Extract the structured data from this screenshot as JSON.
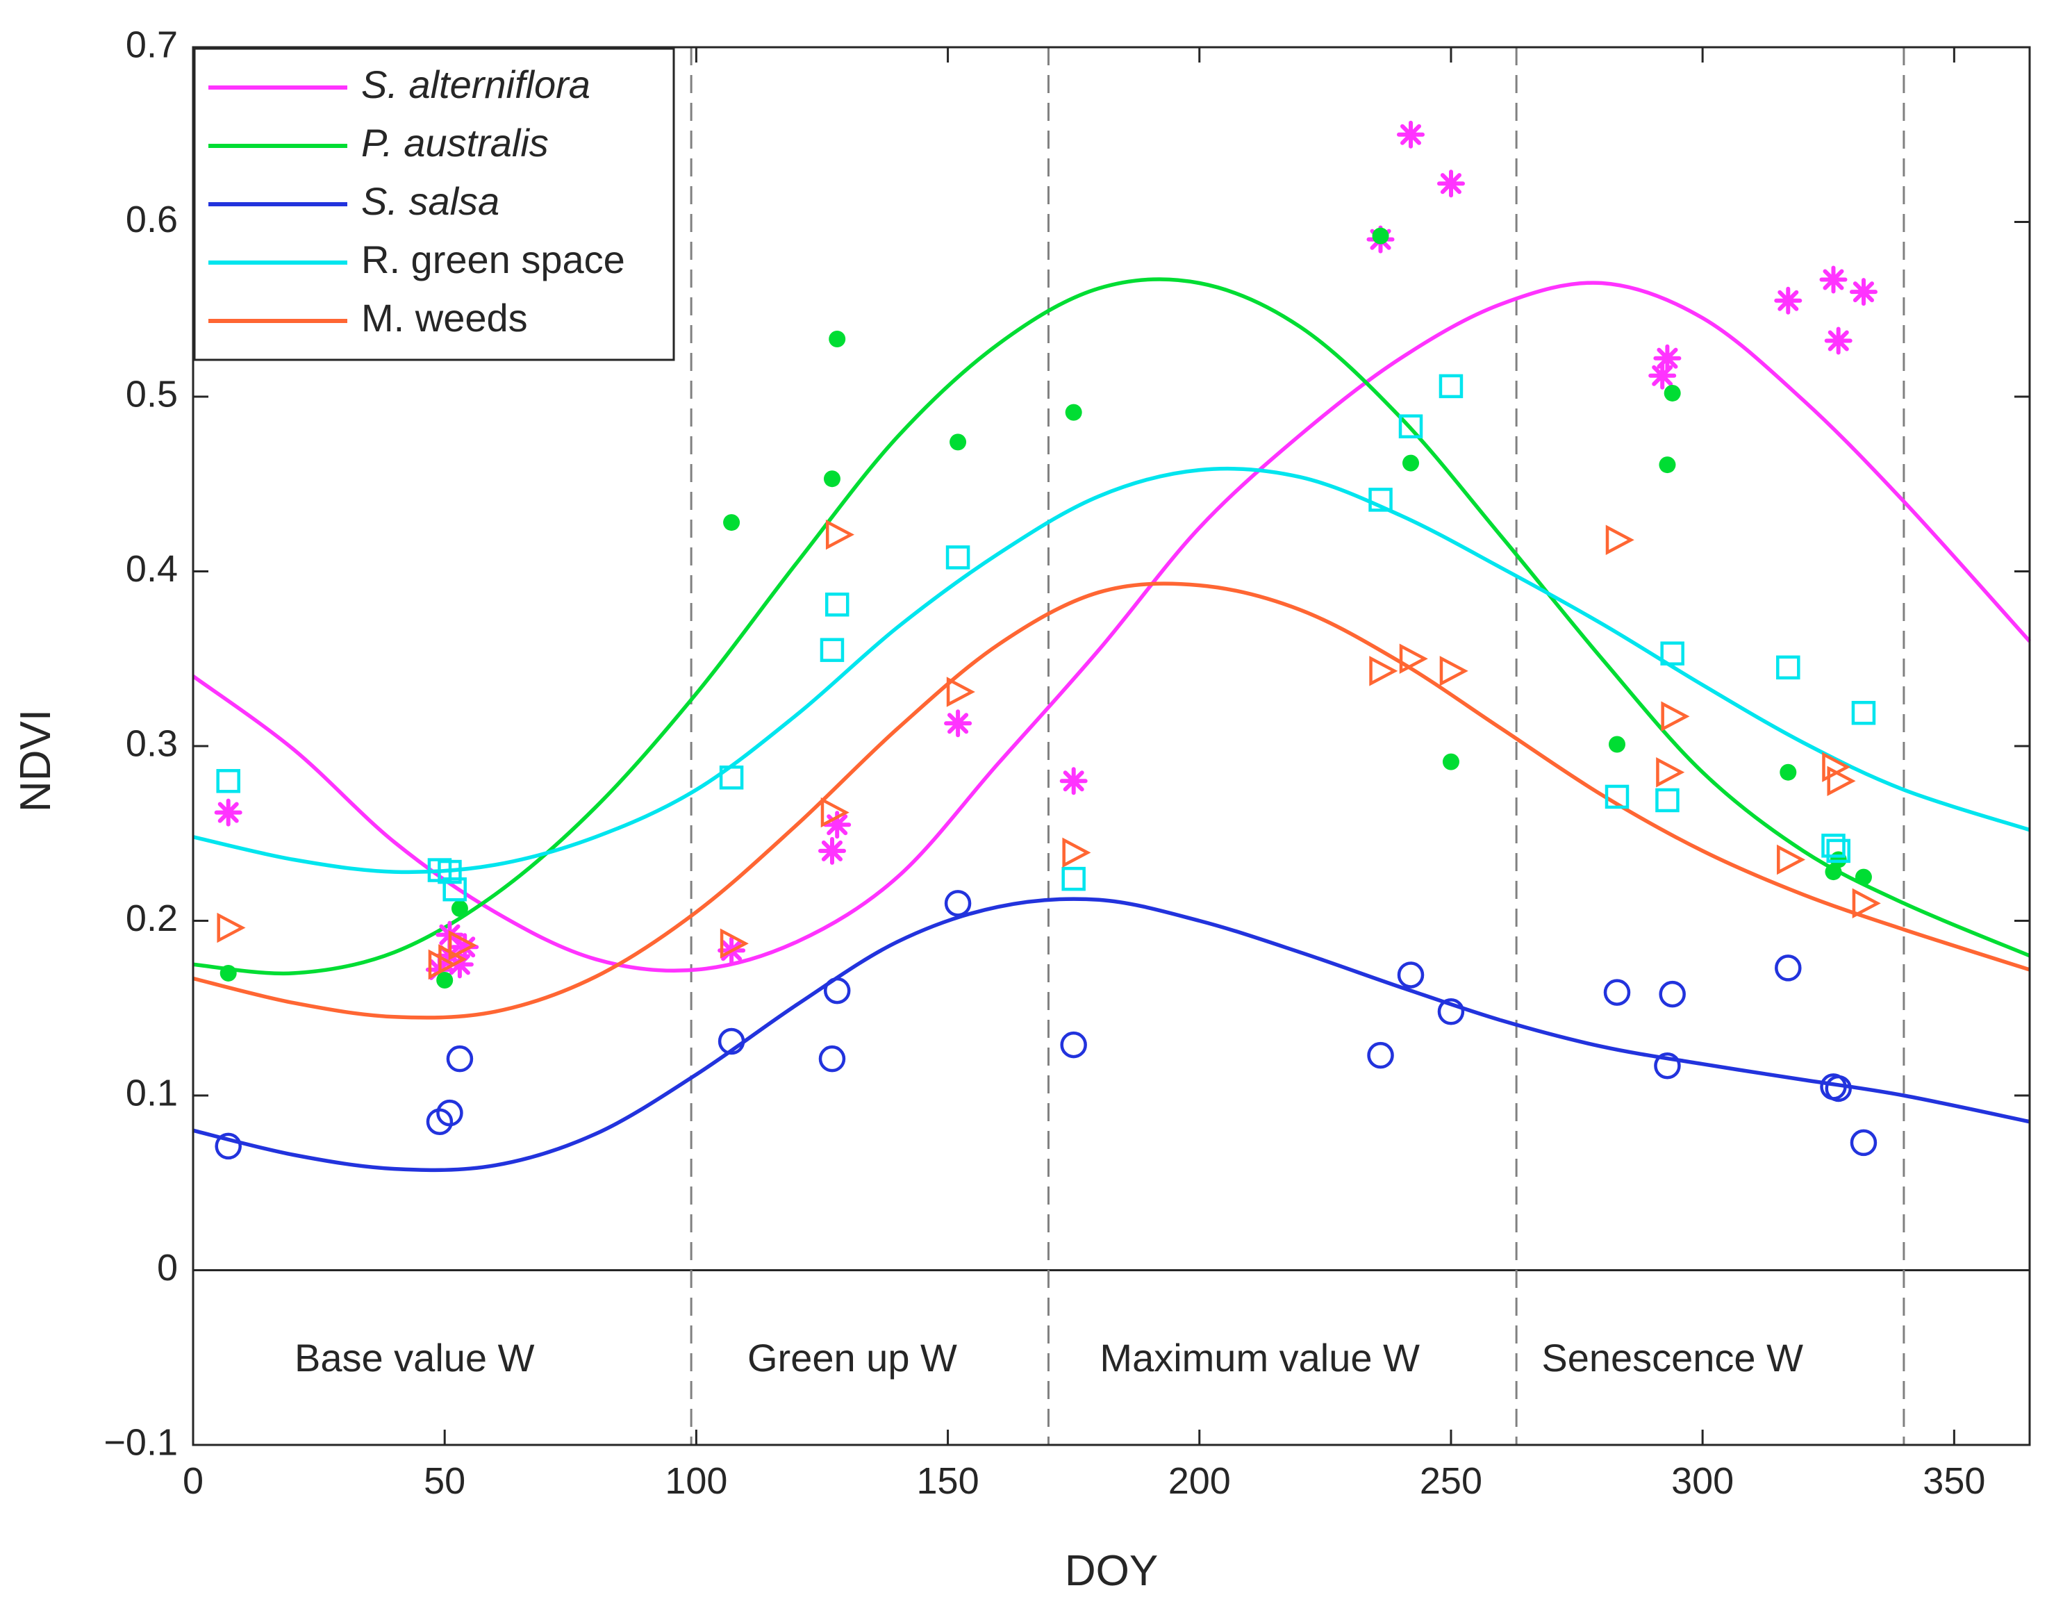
{
  "chart_data": {
    "type": "scatter",
    "title": "",
    "xlabel": "DOY",
    "ylabel": "NDVI",
    "xlim": [
      0,
      365
    ],
    "ylim": [
      -0.1,
      0.7
    ],
    "xticks": [
      "0",
      "50",
      "100",
      "150",
      "200",
      "250",
      "300",
      "350"
    ],
    "xtick_values": [
      0,
      50,
      100,
      150,
      200,
      250,
      300,
      350
    ],
    "yticks": [
      "−0.1",
      "0",
      "0.1",
      "0.2",
      "0.3",
      "0.4",
      "0.5",
      "0.6",
      "0.7"
    ],
    "ytick_values": [
      -0.1,
      0,
      0.1,
      0.2,
      0.3,
      0.4,
      0.5,
      0.6,
      0.7
    ],
    "legend_position": "top-left",
    "window_boundaries": [
      0,
      99,
      170,
      263,
      340
    ],
    "windows": [
      {
        "label": "Base value W",
        "center": 44
      },
      {
        "label": "Green up W",
        "center": 131
      },
      {
        "label": "Maximum value W",
        "center": 212
      },
      {
        "label": "Senescence W",
        "center": 294
      }
    ],
    "series": [
      {
        "name": "S. alterniflora",
        "italic": true,
        "color": "#ff33ff",
        "marker": "asterisk",
        "curve": {
          "x": [
            0,
            20,
            40,
            60,
            80,
            100,
            120,
            140,
            160,
            180,
            200,
            220,
            240,
            260,
            280,
            300,
            320,
            340,
            365
          ],
          "y": [
            0.34,
            0.298,
            0.245,
            0.205,
            0.178,
            0.172,
            0.188,
            0.225,
            0.29,
            0.355,
            0.425,
            0.478,
            0.522,
            0.553,
            0.565,
            0.545,
            0.498,
            0.44,
            0.36
          ]
        },
        "x": [
          7,
          49,
          51,
          51,
          53,
          54,
          107,
          127,
          128,
          152,
          175,
          236,
          242,
          250,
          292,
          293,
          317,
          326,
          327,
          332
        ],
        "y": [
          0.262,
          0.172,
          0.18,
          0.192,
          0.175,
          0.185,
          0.183,
          0.24,
          0.255,
          0.313,
          0.28,
          0.59,
          0.65,
          0.622,
          0.512,
          0.522,
          0.555,
          0.567,
          0.532,
          0.56
        ]
      },
      {
        "name": "P. australis",
        "italic": true,
        "color": "#00dd33",
        "marker": "dot",
        "curve": {
          "x": [
            0,
            20,
            40,
            60,
            80,
            100,
            120,
            140,
            160,
            180,
            200,
            220,
            240,
            260,
            280,
            300,
            320,
            340,
            365
          ],
          "y": [
            0.175,
            0.17,
            0.182,
            0.215,
            0.265,
            0.33,
            0.405,
            0.477,
            0.53,
            0.562,
            0.565,
            0.54,
            0.488,
            0.42,
            0.35,
            0.285,
            0.24,
            0.21,
            0.18
          ]
        },
        "x": [
          7,
          50,
          53,
          107,
          127,
          128,
          152,
          175,
          236,
          242,
          250,
          283,
          293,
          294,
          317,
          326,
          327,
          332
        ],
        "y": [
          0.17,
          0.166,
          0.207,
          0.428,
          0.453,
          0.533,
          0.474,
          0.491,
          0.592,
          0.462,
          0.291,
          0.301,
          0.461,
          0.502,
          0.285,
          0.228,
          0.235,
          0.225
        ]
      },
      {
        "name": "S. salsa",
        "italic": true,
        "color": "#2233dd",
        "marker": "circle",
        "curve": {
          "x": [
            0,
            20,
            40,
            60,
            80,
            100,
            120,
            140,
            160,
            180,
            200,
            220,
            240,
            260,
            280,
            300,
            320,
            340,
            365
          ],
          "y": [
            0.08,
            0.066,
            0.058,
            0.06,
            0.078,
            0.112,
            0.152,
            0.188,
            0.208,
            0.212,
            0.2,
            0.182,
            0.162,
            0.143,
            0.128,
            0.118,
            0.109,
            0.1,
            0.085
          ]
        },
        "x": [
          7,
          49,
          51,
          53,
          107,
          127,
          128,
          152,
          175,
          236,
          242,
          250,
          283,
          293,
          294,
          317,
          326,
          327,
          332
        ],
        "y": [
          0.071,
          0.085,
          0.09,
          0.121,
          0.131,
          0.121,
          0.16,
          0.21,
          0.129,
          0.123,
          0.169,
          0.148,
          0.159,
          0.117,
          0.158,
          0.173,
          0.105,
          0.104,
          0.073
        ]
      },
      {
        "name": "R. green space",
        "italic": false,
        "color": "#00e5ee",
        "marker": "square",
        "curve": {
          "x": [
            0,
            20,
            40,
            60,
            80,
            100,
            120,
            140,
            160,
            180,
            200,
            220,
            240,
            260,
            280,
            300,
            320,
            340,
            365
          ],
          "y": [
            0.248,
            0.235,
            0.228,
            0.232,
            0.248,
            0.275,
            0.318,
            0.368,
            0.41,
            0.443,
            0.458,
            0.454,
            0.432,
            0.402,
            0.37,
            0.335,
            0.302,
            0.275,
            0.252
          ]
        },
        "x": [
          7,
          49,
          51,
          52,
          107,
          127,
          128,
          152,
          175,
          236,
          242,
          250,
          283,
          293,
          294,
          317,
          326,
          327,
          332
        ],
        "y": [
          0.28,
          0.229,
          0.228,
          0.218,
          0.282,
          0.355,
          0.381,
          0.408,
          0.224,
          0.441,
          0.483,
          0.506,
          0.271,
          0.269,
          0.353,
          0.345,
          0.243,
          0.24,
          0.319
        ]
      },
      {
        "name": "M. weeds",
        "italic": false,
        "color": "#ff6633",
        "marker": "triangle-right",
        "curve": {
          "x": [
            0,
            20,
            40,
            60,
            80,
            100,
            120,
            140,
            160,
            180,
            200,
            220,
            240,
            260,
            280,
            300,
            320,
            340,
            365
          ],
          "y": [
            0.167,
            0.153,
            0.145,
            0.148,
            0.168,
            0.205,
            0.255,
            0.31,
            0.358,
            0.388,
            0.392,
            0.378,
            0.348,
            0.31,
            0.272,
            0.24,
            0.215,
            0.195,
            0.172
          ]
        },
        "x": [
          7,
          49,
          51,
          53,
          107,
          127,
          128,
          152,
          175,
          236,
          242,
          250,
          283,
          293,
          294,
          317,
          326,
          327,
          332
        ],
        "y": [
          0.196,
          0.175,
          0.178,
          0.186,
          0.187,
          0.262,
          0.421,
          0.331,
          0.239,
          0.343,
          0.35,
          0.343,
          0.418,
          0.285,
          0.317,
          0.235,
          0.288,
          0.28,
          0.21
        ]
      }
    ]
  }
}
